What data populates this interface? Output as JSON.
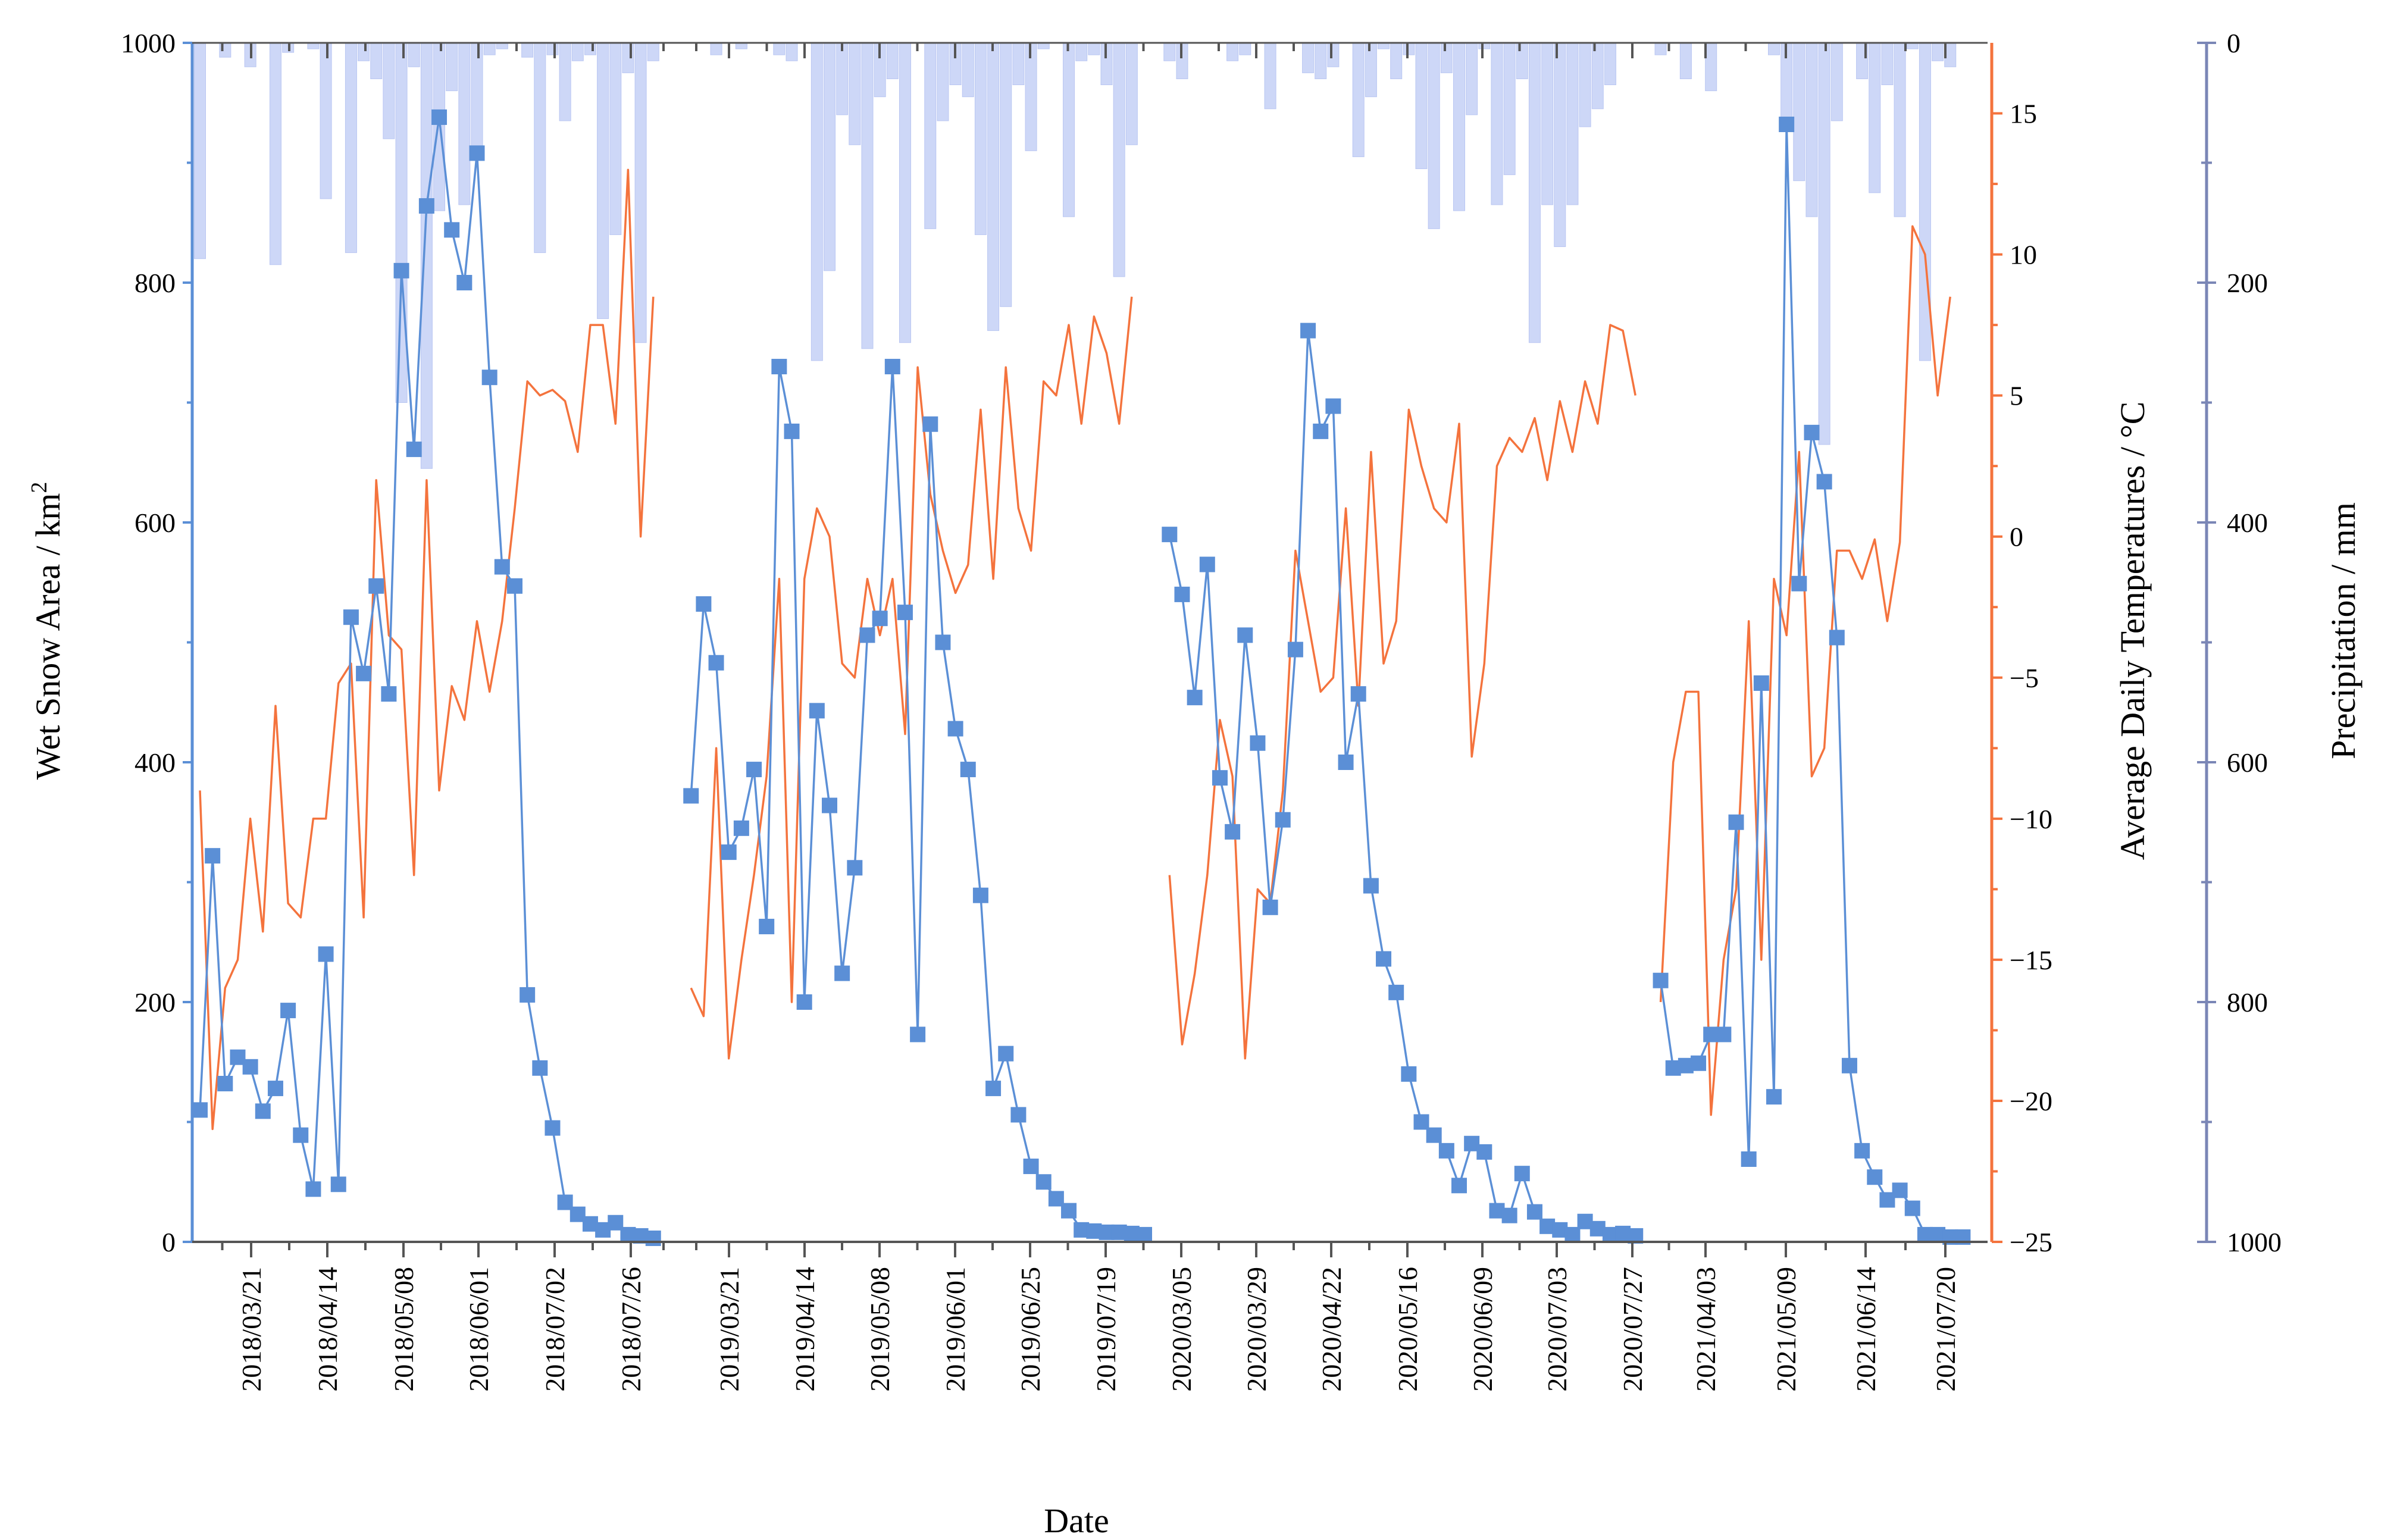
{
  "chart_data": {
    "type": "combo",
    "xlabel": "Date",
    "x_tick_labels": [
      {
        "label": "2018/03/21",
        "season": 0
      },
      {
        "label": "2018/04/14",
        "season": 0
      },
      {
        "label": "2018/05/08",
        "season": 0
      },
      {
        "label": "2018/06/01",
        "season": 0
      },
      {
        "label": "2018/07/02",
        "season": 0
      },
      {
        "label": "2018/07/26",
        "season": 0
      },
      {
        "label": "2019/03/21",
        "season": 1
      },
      {
        "label": "2019/04/14",
        "season": 1
      },
      {
        "label": "2019/05/08",
        "season": 1
      },
      {
        "label": "2019/06/01",
        "season": 1
      },
      {
        "label": "2019/06/25",
        "season": 1
      },
      {
        "label": "2019/07/19",
        "season": 1
      },
      {
        "label": "2020/03/05",
        "season": 2
      },
      {
        "label": "2020/03/29",
        "season": 2
      },
      {
        "label": "2020/04/22",
        "season": 2
      },
      {
        "label": "2020/05/16",
        "season": 2
      },
      {
        "label": "2020/06/09",
        "season": 2
      },
      {
        "label": "2020/07/03",
        "season": 2
      },
      {
        "label": "2020/07/27",
        "season": 2
      },
      {
        "label": "2021/04/03",
        "season": 3
      },
      {
        "label": "2021/05/09",
        "season": 3
      },
      {
        "label": "2021/06/14",
        "season": 3
      },
      {
        "label": "2021/07/20",
        "season": 3
      }
    ],
    "n_slots": 142,
    "y_left": {
      "label": "Wet Snow Area / km",
      "label_superscript": "2",
      "range": [
        0,
        1000
      ],
      "ticks": [
        0,
        200,
        400,
        600,
        800,
        1000
      ],
      "color": "#5b8fd6"
    },
    "y_right1": {
      "label": "Average Daily Temperatures / °C",
      "range": [
        -25,
        17.5
      ],
      "ticks": [
        -25,
        -20,
        -15,
        -10,
        -5,
        0,
        5,
        10,
        15
      ],
      "color": "#f4733d"
    },
    "y_right2": {
      "label": "Precipitation / mm",
      "range": [
        0,
        1000
      ],
      "inverted": true,
      "ticks": [
        0,
        200,
        400,
        600,
        800,
        1000
      ],
      "color": "#7a86b6"
    },
    "series": [
      {
        "name": "Wet Snow Area",
        "type": "line-marker",
        "axis": "y_left",
        "color": "#5b8fd6",
        "segments": [
          {
            "start_slot": 0,
            "values": [
              110,
              322,
              132,
              154,
              146,
              109,
              128,
              193,
              89,
              44,
              240,
              48,
              521,
              474,
              547,
              457,
              810,
              661,
              864,
              938,
              844,
              800,
              908,
              721,
              563,
              547,
              206,
              145,
              95,
              33,
              23,
              15,
              10,
              16,
              6,
              5,
              3
            ]
          },
          {
            "start_slot": 39,
            "values": [
              372,
              532,
              483,
              325,
              345,
              394,
              263,
              730,
              676,
              200,
              443,
              364,
              224,
              312,
              506,
              520,
              730,
              525,
              173,
              682,
              500,
              428,
              394,
              289,
              128,
              157,
              106,
              63,
              50,
              36,
              26,
              10,
              9,
              8,
              8,
              7,
              6
            ]
          },
          {
            "start_slot": 77,
            "values": [
              590,
              540,
              454,
              565,
              387,
              342,
              506,
              416,
              279,
              352,
              494,
              760,
              676,
              697,
              400,
              457,
              297,
              236,
              208,
              140,
              100,
              89,
              76,
              47,
              82,
              75,
              26,
              22,
              57,
              25,
              13,
              10,
              6,
              17,
              11,
              6,
              7,
              5
            ]
          },
          {
            "start_slot": 116,
            "values": [
              218,
              145,
              147,
              149,
              173,
              173,
              350,
              69,
              466,
              121,
              932,
              549,
              675,
              634,
              504,
              147,
              76,
              54,
              35,
              43,
              28,
              6,
              6,
              4,
              4
            ]
          }
        ]
      },
      {
        "name": "Average Daily Temperatures",
        "type": "line",
        "axis": "y_right1",
        "color": "#f4733d",
        "segments": [
          {
            "start_slot": 0,
            "values": [
              -9,
              -21,
              -16,
              -15,
              -10,
              -14,
              -6,
              -13,
              -13.5,
              -10,
              -10,
              -5.2,
              -4.5,
              -13.5,
              2,
              -3.5,
              -4,
              -12,
              2,
              -9,
              -5.3,
              -6.5,
              -3,
              -5.5,
              -3,
              1,
              5.5,
              5,
              5.2,
              4.8,
              3,
              7.5,
              7.5,
              4,
              13,
              0,
              8.5
            ]
          },
          {
            "start_slot": 39,
            "values": [
              -16,
              -17,
              -7.5,
              -18.5,
              -15,
              -12,
              -8.5,
              -1.5,
              -16.5,
              -1.5,
              1,
              0,
              -4.5,
              -5,
              -1.5,
              -3.5,
              -1.5,
              -7,
              6,
              1.5,
              -0.5,
              -2,
              -1,
              4.5,
              -1.5,
              6,
              1,
              -0.5,
              5.5,
              5,
              7.5,
              4,
              7.8,
              6.5,
              4,
              8.5
            ]
          },
          {
            "start_slot": 77,
            "values": [
              -12,
              -18,
              -15.5,
              -12,
              -6.5,
              -8.5,
              -18.5,
              -12.5,
              -13,
              -9,
              -0.5,
              -3,
              -5.5,
              -5,
              1,
              -6,
              3,
              -4.5,
              -3,
              4.5,
              2.5,
              1,
              0.5,
              4,
              -7.8,
              -4.5,
              2.5,
              3.5,
              3,
              4.2,
              2,
              4.8,
              3,
              5.5,
              4,
              7.5,
              7.3,
              5
            ]
          },
          {
            "start_slot": 116,
            "values": [
              -16.5,
              -8,
              -5.5,
              -5.5,
              -20.5,
              -15,
              -12.5,
              -3,
              -15,
              -1.5,
              -3.5,
              3,
              -8.5,
              -7.5,
              -0.5,
              -0.5,
              -1.5,
              -0.1,
              -3,
              -0.2,
              11,
              10,
              5,
              8.5
            ]
          }
        ]
      },
      {
        "name": "Precipitation",
        "type": "bar",
        "axis": "y_right2",
        "color": "#cdd7f7",
        "segments": [
          {
            "start_slot": 0,
            "values": [
              180,
              0,
              12,
              0,
              20,
              0,
              185,
              8,
              0,
              5,
              130,
              0,
              175,
              15,
              30,
              80,
              300,
              20,
              355,
              140,
              40,
              135,
              90,
              10,
              5,
              0,
              12,
              175,
              10,
              65,
              15,
              10,
              230,
              160,
              25,
              250,
              15
            ]
          },
          {
            "start_slot": 39,
            "values": [
              0,
              0,
              10,
              0,
              5,
              0,
              0,
              10,
              15,
              0,
              265,
              190,
              60,
              85,
              255,
              45,
              30,
              250,
              0,
              155,
              65,
              35,
              45,
              160,
              240,
              220,
              35,
              90,
              5,
              0,
              145,
              15,
              10,
              35,
              195,
              85
            ]
          },
          {
            "start_slot": 77,
            "values": [
              15,
              30,
              0,
              0,
              0,
              15,
              10,
              0,
              55,
              0,
              0,
              25,
              30,
              20,
              0,
              95,
              45,
              5,
              30,
              10,
              105,
              155,
              25,
              140,
              60,
              5,
              135,
              110,
              30,
              250,
              135,
              170,
              135,
              70,
              55,
              35,
              0,
              0
            ]
          },
          {
            "start_slot": 116,
            "values": [
              10,
              0,
              30,
              0,
              40,
              0,
              0,
              0,
              0,
              10,
              65,
              115,
              145,
              335,
              65,
              0,
              30,
              125,
              35,
              145,
              5,
              265,
              15,
              20,
              0
            ]
          }
        ]
      }
    ]
  }
}
